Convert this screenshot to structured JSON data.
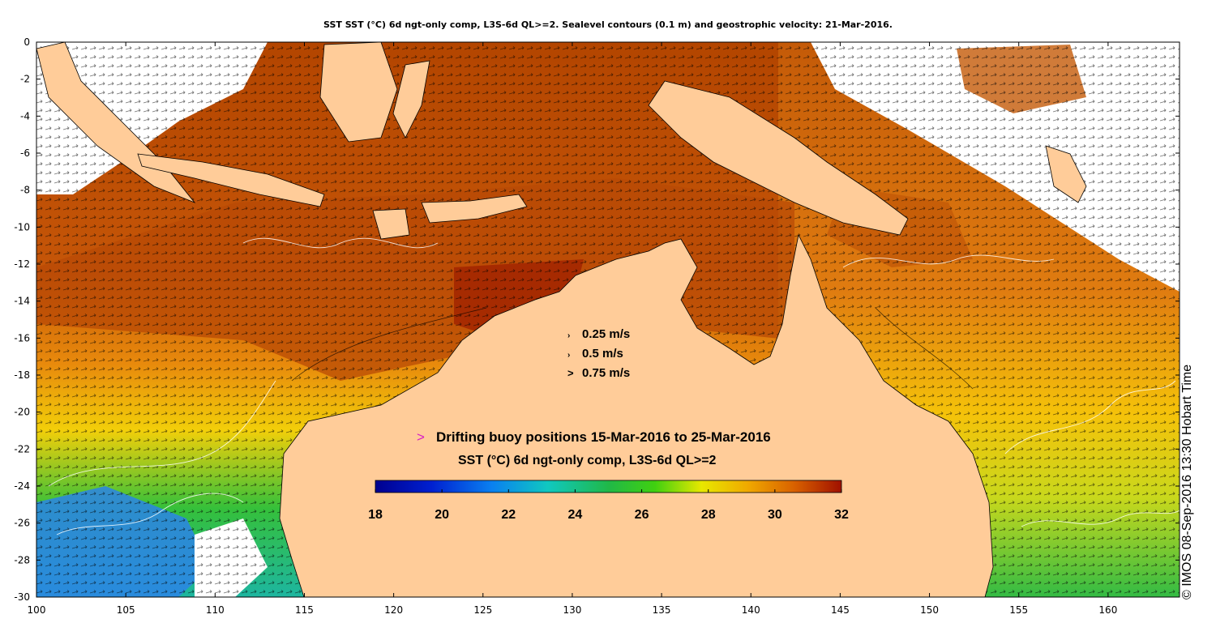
{
  "title": "SST SST (°C) 6d ngt-only comp, L3S-6d QL>=2. Sealevel contours (0.1 m) and geostrophic velocity: 21-Mar-2016.",
  "credit": "© IMOS 08-Sep-2016 13:30 Hobart Time",
  "x_axis": {
    "ticks": [
      "100",
      "105",
      "110",
      "115",
      "120",
      "125",
      "130",
      "135",
      "140",
      "145",
      "150",
      "155",
      "160"
    ],
    "range": [
      100,
      164
    ]
  },
  "y_axis": {
    "ticks": [
      "0",
      "-2",
      "-4",
      "-6",
      "-8",
      "-10",
      "-12",
      "-14",
      "-16",
      "-18",
      "-20",
      "-22",
      "-24",
      "-26",
      "-28",
      "-30"
    ],
    "range": [
      -30,
      0
    ]
  },
  "velocity_legend": [
    {
      "label": "0.25 m/s",
      "value": 0.25
    },
    {
      "label": "0.5 m/s",
      "value": 0.5
    },
    {
      "label": "0.75 m/s",
      "value": 0.75
    }
  ],
  "buoy_legend": {
    "marker": ">",
    "label": "Drifting buoy positions 15-Mar-2016 to 25-Mar-2016",
    "color": "#d81ec4"
  },
  "colorbar": {
    "title": "SST (°C) 6d ngt-only comp, L3S-6d QL>=2",
    "ticks": [
      "18",
      "20",
      "22",
      "24",
      "26",
      "28",
      "30",
      "32"
    ],
    "range": [
      18,
      32
    ]
  },
  "colors": {
    "land": "#ffcc99",
    "cloud_gap": "#ffffff",
    "sst_warm": "#b83a00",
    "sst_hot": "#9c1a00",
    "sst_mid": "#e0880a",
    "sst_cool": "#22bb33",
    "sst_cold": "#2a7fe0"
  }
}
